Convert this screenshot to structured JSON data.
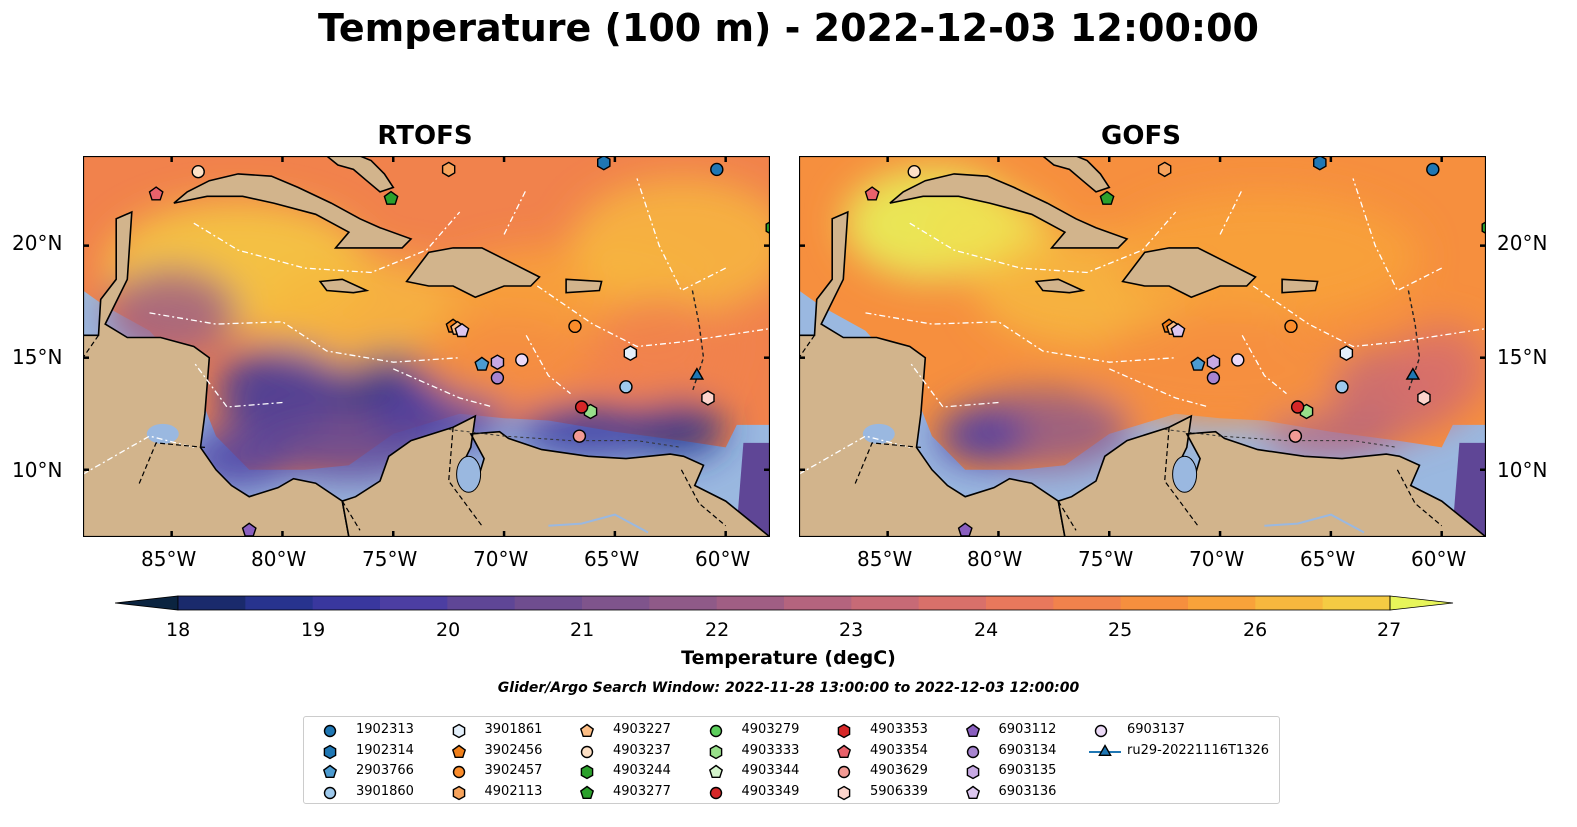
{
  "title": "Temperature (100 m) - 2022-12-03 12:00:00",
  "panels": [
    {
      "name": "RTOFS"
    },
    {
      "name": "GOFS"
    }
  ],
  "lon_ticks": [
    "85°W",
    "80°W",
    "75°W",
    "70°W",
    "65°W",
    "60°W"
  ],
  "lat_ticks": [
    "20°N",
    "15°N",
    "10°N"
  ],
  "map_extent": {
    "lon": [
      -89,
      -58
    ],
    "lat": [
      7,
      24
    ]
  },
  "colorbar": {
    "label": "Temperature (degC)",
    "min": 18,
    "max": 27,
    "step": 0.5,
    "ticks": [
      "18",
      "19",
      "20",
      "21",
      "22",
      "23",
      "24",
      "25",
      "26",
      "27"
    ],
    "colors": [
      "#0b2440",
      "#1a2a6c",
      "#27338e",
      "#39379e",
      "#4c3ea2",
      "#5f4696",
      "#6f4d8f",
      "#7f548c",
      "#8f5a88",
      "#a05e84",
      "#b4647e",
      "#c76a76",
      "#d9706a",
      "#e8785c",
      "#f1824c",
      "#f68f3e",
      "#f8a23a",
      "#f7b73e",
      "#f5cb43",
      "#f0e151"
    ],
    "extend_min_color": "#0b2440",
    "extend_max_color": "#e7f55a"
  },
  "search_window": "Glider/Argo Search Window: 2022-11-28 13:00:00 to 2022-12-03 12:00:00",
  "colors": {
    "land": "#d2b48c",
    "water_outside": "#9ab8e0",
    "dark_water": "#0b2440"
  },
  "legend": [
    {
      "label": "1902313",
      "marker": "circle",
      "color": "#1f77b4"
    },
    {
      "label": "1902314",
      "marker": "hexagon",
      "color": "#1f77b4"
    },
    {
      "label": "2903766",
      "marker": "pentagon",
      "color": "#4c9bd0"
    },
    {
      "label": "3901860",
      "marker": "circle",
      "color": "#9ec9ec"
    },
    {
      "label": "3901861",
      "marker": "hexagon",
      "color": "#e4f0fb"
    },
    {
      "label": "3902456",
      "marker": "pentagon",
      "color": "#f07f1a"
    },
    {
      "label": "3902457",
      "marker": "circle",
      "color": "#fb8c2b"
    },
    {
      "label": "4902113",
      "marker": "hexagon",
      "color": "#f7a35c"
    },
    {
      "label": "4903227",
      "marker": "pentagon",
      "color": "#fdbe85"
    },
    {
      "label": "4903237",
      "marker": "circle",
      "color": "#fde0c5"
    },
    {
      "label": "4903244",
      "marker": "hexagon",
      "color": "#2ca02c"
    },
    {
      "label": "4903277",
      "marker": "pentagon",
      "color": "#2ca02c"
    },
    {
      "label": "4903279",
      "marker": "circle",
      "color": "#5ccf5c"
    },
    {
      "label": "4903333",
      "marker": "hexagon",
      "color": "#98df8a"
    },
    {
      "label": "4903344",
      "marker": "pentagon",
      "color": "#d4f4cc"
    },
    {
      "label": "4903349",
      "marker": "circle",
      "color": "#d62728"
    },
    {
      "label": "4903353",
      "marker": "hexagon",
      "color": "#d62728"
    },
    {
      "label": "4903354",
      "marker": "pentagon",
      "color": "#e9626b"
    },
    {
      "label": "4903629",
      "marker": "circle",
      "color": "#f29a94"
    },
    {
      "label": "5906339",
      "marker": "hexagon",
      "color": "#fcd4cc"
    },
    {
      "label": "6903112",
      "marker": "pentagon",
      "color": "#8a5fbf"
    },
    {
      "label": "6903134",
      "marker": "circle",
      "color": "#a784d0"
    },
    {
      "label": "6903135",
      "marker": "hexagon",
      "color": "#c7a9e3"
    },
    {
      "label": "6903136",
      "marker": "pentagon",
      "color": "#dcc6ef"
    },
    {
      "label": "6903137",
      "marker": "circle",
      "color": "#ecdaf7"
    },
    {
      "label": "ru29-20221116T1326",
      "marker": "triangle-line",
      "color": "#1f77b4"
    }
  ],
  "observations": [
    {
      "label": "1902313",
      "lon": -60.4,
      "lat": 23.4
    },
    {
      "label": "1902314",
      "lon": -65.5,
      "lat": 23.7
    },
    {
      "label": "2903766",
      "lon": -71.0,
      "lat": 14.7
    },
    {
      "label": "3901860",
      "lon": -64.5,
      "lat": 13.7
    },
    {
      "label": "3901861",
      "lon": -64.3,
      "lat": 15.2
    },
    {
      "label": "3902456",
      "lon": -72.3,
      "lat": 16.4
    },
    {
      "label": "3902457",
      "lon": -66.8,
      "lat": 16.4
    },
    {
      "label": "4902113",
      "lon": -72.5,
      "lat": 23.4
    },
    {
      "label": "4903227",
      "lon": -72.1,
      "lat": 16.3
    },
    {
      "label": "4903237",
      "lon": -83.8,
      "lat": 23.3
    },
    {
      "label": "4903244",
      "lon": -57.9,
      "lat": 20.8
    },
    {
      "label": "4903277",
      "lon": -75.1,
      "lat": 22.1
    },
    {
      "label": "4903333",
      "lon": -66.1,
      "lat": 12.6
    },
    {
      "label": "4903349",
      "lon": -66.5,
      "lat": 12.8
    },
    {
      "label": "4903354",
      "lon": -85.7,
      "lat": 22.3
    },
    {
      "label": "4903629",
      "lon": -66.6,
      "lat": 11.5
    },
    {
      "label": "5906339",
      "lon": -60.8,
      "lat": 13.2
    },
    {
      "label": "6903112",
      "lon": -81.5,
      "lat": 7.3
    },
    {
      "label": "6903134",
      "lon": -70.3,
      "lat": 14.1
    },
    {
      "label": "6903135",
      "lon": -70.3,
      "lat": 14.8
    },
    {
      "label": "6903136",
      "lon": -71.9,
      "lat": 16.2
    },
    {
      "label": "6903137",
      "lon": -69.2,
      "lat": 14.9
    },
    {
      "label": "ru29-20221116T1326",
      "lon": -61.3,
      "lat": 14.2
    }
  ]
}
